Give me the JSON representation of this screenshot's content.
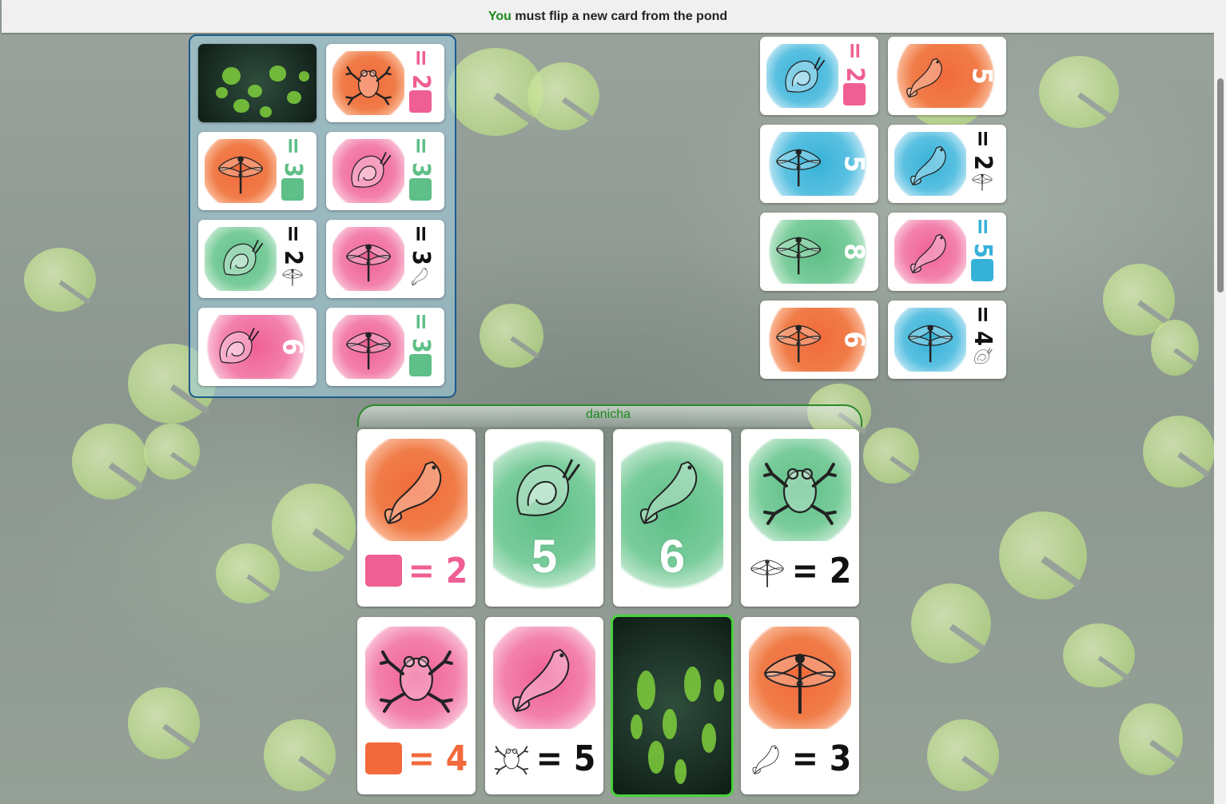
{
  "status": {
    "player": "You",
    "message": "must flip a new card from the pond"
  },
  "player": {
    "name": "danicha"
  },
  "deck_cards": [
    {
      "id": "d0",
      "back": true
    },
    {
      "id": "d1",
      "animal": "frog",
      "color": "orange",
      "rule_color": "pink",
      "text": "= 2"
    },
    {
      "id": "d2",
      "animal": "dragonfly",
      "color": "orange",
      "rule_color": "green",
      "text": "= 3"
    },
    {
      "id": "d3",
      "animal": "snail",
      "color": "pink",
      "rule_color": "green",
      "text": "= 3"
    },
    {
      "id": "d4",
      "animal": "snail",
      "color": "green",
      "rule_icon": "dragonfly",
      "text": "= 2"
    },
    {
      "id": "d5",
      "animal": "dragonfly",
      "color": "pink",
      "rule_icon": "fish",
      "text": "= 3"
    },
    {
      "id": "d6",
      "animal": "snail",
      "color": "pink",
      "number": "6"
    },
    {
      "id": "d7",
      "animal": "dragonfly",
      "color": "pink",
      "rule_color": "green",
      "text": "= 3"
    }
  ],
  "pond_cards": [
    {
      "id": "p0",
      "animal": "snail",
      "color": "blue",
      "rule_color": "pink",
      "text": "= 2"
    },
    {
      "id": "p1",
      "animal": "fish",
      "color": "orange",
      "number": "5"
    },
    {
      "id": "p2",
      "animal": "dragonfly",
      "color": "blue",
      "number": "5"
    },
    {
      "id": "p3",
      "animal": "fish",
      "color": "blue",
      "rule_icon": "dragonfly",
      "text": "= 2"
    },
    {
      "id": "p4",
      "animal": "dragonfly",
      "color": "green",
      "number": "8"
    },
    {
      "id": "p5",
      "animal": "fish",
      "color": "pink",
      "rule_color": "blue",
      "text": "= 5"
    },
    {
      "id": "p6",
      "animal": "dragonfly",
      "color": "orange",
      "number": "6"
    },
    {
      "id": "p7",
      "animal": "dragonfly",
      "color": "blue",
      "rule_icon": "snail",
      "text": "= 4"
    }
  ],
  "hand_cards": [
    {
      "id": "h0",
      "animal": "fish",
      "color": "orange",
      "rule_color": "pink",
      "text": "= 2"
    },
    {
      "id": "h1",
      "animal": "snail",
      "color": "green",
      "number": "5"
    },
    {
      "id": "h2",
      "animal": "fish",
      "color": "green",
      "number": "6"
    },
    {
      "id": "h3",
      "animal": "frog",
      "color": "green",
      "rule_icon": "dragonfly",
      "text": "= 2"
    },
    {
      "id": "h4",
      "animal": "frog",
      "color": "pink",
      "rule_color": "orange",
      "text": "= 4"
    },
    {
      "id": "h5",
      "animal": "fish",
      "color": "pink",
      "rule_icon": "frog",
      "text": "= 5"
    },
    {
      "id": "h6",
      "back": true,
      "selected": true
    },
    {
      "id": "h7",
      "animal": "dragonfly",
      "color": "orange",
      "rule_icon": "fish",
      "text": "= 3"
    }
  ]
}
